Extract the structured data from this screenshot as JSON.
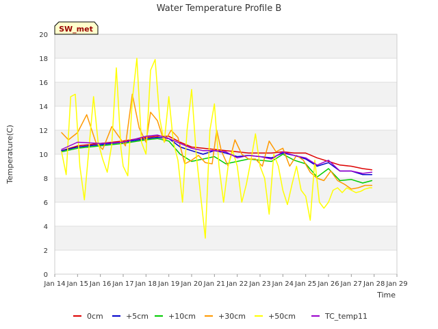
{
  "chart_data": {
    "type": "line",
    "title": "Water Temperature Profile B",
    "xlabel": "Time",
    "ylabel": "Temperature(C)",
    "xlim": [
      0,
      15
    ],
    "ylim": [
      0,
      20
    ],
    "x_ticks": [
      0,
      1,
      2,
      3,
      4,
      5,
      6,
      7,
      8,
      9,
      10,
      11,
      12,
      13,
      14,
      15
    ],
    "x_tick_labels": [
      "Jan 14",
      "Jan 15",
      "Jan 16",
      "Jan 17",
      "Jan 18",
      "Jan 19",
      "Jan 20",
      "Jan 21",
      "Jan 22",
      "Jan 23",
      "Jan 24",
      "Jan 25",
      "Jan 26",
      "Jan 27",
      "Jan 28",
      "Jan 29"
    ],
    "y_ticks": [
      0,
      2,
      4,
      6,
      8,
      10,
      12,
      14,
      16,
      18,
      20
    ],
    "grid": true,
    "legend_position": "bottom",
    "annotation": "SW_met",
    "series": [
      {
        "name": "0cm",
        "color": "#dd0000",
        "x": [
          0.3,
          1,
          2,
          3,
          4,
          4.5,
          5,
          5.5,
          6,
          6.5,
          7,
          7.5,
          8,
          8.5,
          9,
          9.5,
          10,
          10.5,
          11,
          11.5,
          12,
          12.5,
          13,
          13.5,
          13.9
        ],
        "y": [
          10.3,
          10.7,
          10.9,
          11.1,
          11.4,
          11.5,
          11.5,
          11.0,
          10.6,
          10.5,
          10.4,
          10.3,
          10.2,
          10.1,
          10.1,
          10.1,
          10.2,
          10.1,
          10.1,
          9.7,
          9.4,
          9.1,
          9.0,
          8.8,
          8.7
        ]
      },
      {
        "name": "+5cm",
        "color": "#0000cc",
        "x": [
          0.3,
          1,
          2,
          3,
          4,
          4.5,
          5,
          5.5,
          6,
          6.5,
          7,
          7.5,
          8,
          8.5,
          9,
          9.5,
          10,
          10.5,
          11,
          11.5,
          12,
          12.5,
          13,
          13.5,
          13.9
        ],
        "y": [
          10.3,
          10.6,
          10.8,
          11.0,
          11.3,
          11.4,
          11.3,
          10.6,
          10.3,
          10.0,
          10.3,
          10.1,
          9.8,
          9.9,
          9.8,
          9.7,
          10.1,
          9.9,
          9.6,
          9.0,
          9.3,
          8.6,
          8.6,
          8.3,
          8.3
        ]
      },
      {
        "name": "+10cm",
        "color": "#00cc00",
        "x": [
          0.3,
          1,
          2,
          3,
          4,
          4.5,
          5,
          5.5,
          6,
          6.5,
          7,
          7.5,
          8,
          8.5,
          9,
          9.5,
          10,
          10.5,
          11,
          11.5,
          12,
          12.5,
          13,
          13.5,
          13.9
        ],
        "y": [
          10.2,
          10.5,
          10.7,
          10.9,
          11.2,
          11.3,
          11.1,
          10.0,
          9.4,
          9.6,
          9.8,
          9.2,
          9.4,
          9.6,
          9.5,
          9.4,
          10.0,
          9.5,
          9.2,
          8.1,
          8.8,
          7.8,
          7.9,
          7.6,
          7.8
        ]
      },
      {
        "name": "+30cm",
        "color": "#ff9900",
        "x": [
          0.3,
          0.6,
          1.0,
          1.4,
          1.8,
          2.1,
          2.5,
          2.8,
          3.1,
          3.4,
          3.7,
          4.0,
          4.2,
          4.5,
          4.8,
          5.1,
          5.4,
          5.7,
          6.0,
          6.3,
          6.6,
          6.9,
          7.1,
          7.3,
          7.6,
          7.9,
          8.2,
          8.5,
          8.8,
          9.1,
          9.4,
          9.7,
          10.0,
          10.3,
          10.6,
          10.9,
          11.2,
          11.5,
          11.8,
          12.1,
          12.4,
          12.7,
          13.0,
          13.3,
          13.6,
          13.9
        ],
        "y": [
          11.8,
          11.2,
          11.8,
          13.3,
          11.0,
          10.4,
          12.3,
          11.5,
          10.7,
          15.0,
          12.2,
          11.0,
          13.5,
          12.8,
          11.0,
          12.0,
          11.4,
          9.2,
          9.5,
          9.9,
          9.3,
          9.2,
          12.0,
          10.3,
          9.0,
          11.2,
          10.0,
          9.6,
          9.6,
          9.0,
          11.1,
          10.2,
          10.5,
          9.0,
          9.9,
          9.5,
          8.5,
          8.0,
          7.8,
          8.6,
          7.8,
          7.5,
          7.1,
          7.2,
          7.4,
          7.4
        ]
      },
      {
        "name": "+50cm",
        "color": "#ffff00",
        "x": [
          0.3,
          0.5,
          0.7,
          0.9,
          1.1,
          1.3,
          1.5,
          1.7,
          1.9,
          2.1,
          2.3,
          2.5,
          2.7,
          2.9,
          3.0,
          3.2,
          3.4,
          3.6,
          3.8,
          4.0,
          4.2,
          4.4,
          4.6,
          4.8,
          5.0,
          5.2,
          5.4,
          5.6,
          5.8,
          6.0,
          6.2,
          6.4,
          6.6,
          6.8,
          7.0,
          7.2,
          7.4,
          7.6,
          7.8,
          8.0,
          8.2,
          8.4,
          8.6,
          8.8,
          9.0,
          9.2,
          9.4,
          9.6,
          9.8,
          10.0,
          10.2,
          10.4,
          10.6,
          10.8,
          11.0,
          11.2,
          11.4,
          11.6,
          11.8,
          12.0,
          12.2,
          12.4,
          12.6,
          12.8,
          13.0,
          13.2,
          13.4,
          13.6,
          13.8,
          13.9
        ],
        "y": [
          10.2,
          8.3,
          14.8,
          15.0,
          9.0,
          6.2,
          10.5,
          14.8,
          11.0,
          9.6,
          8.5,
          10.8,
          17.2,
          10.5,
          9.0,
          8.2,
          14.5,
          18.0,
          11.0,
          10.0,
          17.0,
          17.9,
          13.0,
          11.0,
          14.8,
          11.0,
          9.5,
          6.0,
          12.0,
          15.4,
          10.0,
          6.5,
          3.0,
          12.0,
          14.2,
          9.0,
          6.0,
          9.0,
          10.3,
          9.0,
          6.0,
          7.5,
          9.5,
          11.7,
          9.0,
          8.0,
          5.0,
          10.0,
          9.0,
          7.0,
          5.8,
          7.5,
          9.0,
          7.0,
          6.5,
          4.5,
          9.5,
          6.0,
          5.5,
          6.0,
          7.0,
          7.2,
          6.8,
          7.2,
          7.0,
          6.8,
          6.9,
          7.1,
          7.2,
          7.2
        ]
      },
      {
        "name": "TC_temp11",
        "color": "#9900cc",
        "x": [
          0.3,
          1,
          2,
          3,
          4,
          4.5,
          5,
          5.5,
          6,
          6.5,
          7,
          7.5,
          8,
          8.5,
          9,
          9.5,
          10,
          10.5,
          11,
          11.5,
          12,
          12.5,
          13,
          13.5,
          13.9
        ],
        "y": [
          10.4,
          11.0,
          10.9,
          11.0,
          11.5,
          11.6,
          11.3,
          10.9,
          10.5,
          10.3,
          10.3,
          10.2,
          9.7,
          9.9,
          9.8,
          9.6,
          10.2,
          9.9,
          9.7,
          9.1,
          9.5,
          8.6,
          8.6,
          8.4,
          8.5
        ]
      }
    ]
  }
}
